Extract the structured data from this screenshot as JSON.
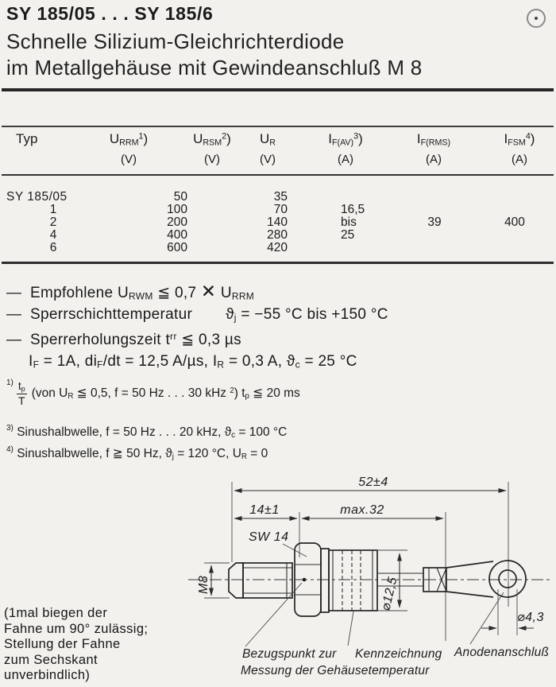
{
  "colors": {
    "paper": "#f2f1ed",
    "ink": "#1b1b1b",
    "rule": "#262626"
  },
  "header": {
    "title": "SY 185/05 . . . SY 185/6",
    "subtitle_line1": "Schnelle Silizium-Gleichrichterdiode",
    "subtitle_line2": "im Metallgehäuse mit Gewindeanschluß M 8",
    "corner_icon": "circled-dot"
  },
  "table": {
    "headers": {
      "typ": "Typ",
      "urrm": [
        {
          "t": "U"
        },
        {
          "t": "RRM",
          "s": "sub"
        },
        {
          "t": "1",
          "s": "sup"
        },
        {
          "t": ")"
        }
      ],
      "ursm": [
        {
          "t": "U"
        },
        {
          "t": "RSM",
          "s": "sub"
        },
        {
          "t": "2",
          "s": "sup"
        },
        {
          "t": ")"
        }
      ],
      "ur": [
        {
          "t": "U"
        },
        {
          "t": "R",
          "s": "sub"
        }
      ],
      "ifav": [
        {
          "t": "I"
        },
        {
          "t": "F(AV)",
          "s": "sub"
        },
        {
          "t": "3",
          "s": "sup"
        },
        {
          "t": ")"
        }
      ],
      "ifrms": [
        {
          "t": "I"
        },
        {
          "t": "F(RMS)",
          "s": "sub"
        }
      ],
      "ifsm": [
        {
          "t": "I"
        },
        {
          "t": "FSM",
          "s": "sub"
        },
        {
          "t": "4",
          "s": "sup"
        },
        {
          "t": ")"
        }
      ]
    },
    "units": {
      "urrm": "(V)",
      "ursm": "(V)",
      "ur": "(V)",
      "ifav": "(A)",
      "ifrms": "(A)",
      "ifsm": "(A)"
    },
    "rows": [
      {
        "typ": "SY 185/05",
        "urrm": "50",
        "ur": "35"
      },
      {
        "typ": "1",
        "urrm": "100",
        "ur": "70",
        "ifav": "16,5"
      },
      {
        "typ": "2",
        "urrm": "200",
        "ur": "140",
        "ifav": "bis",
        "ifrms": "39",
        "ifsm": "400"
      },
      {
        "typ": "4",
        "urrm": "400",
        "ur": "280",
        "ifav": "25"
      },
      {
        "typ": "6",
        "urrm": "600",
        "ur": "420"
      }
    ]
  },
  "notes": [
    {
      "dash": "—",
      "segs": [
        {
          "t": "Empfohlene U"
        },
        {
          "t": "RWM",
          "s": "sub"
        },
        {
          "t": " ≦ 0,7 "
        },
        {
          "t": "✕",
          "s": "x"
        },
        {
          "t": " U"
        },
        {
          "t": "RRM",
          "s": "sub"
        }
      ]
    },
    {
      "dash": "—",
      "segs": [
        {
          "t": "Sperrschichttemperatur"
        },
        {
          "t": "ϑ",
          "s": "ml"
        },
        {
          "t": "j",
          "s": "sub"
        },
        {
          "t": " = −55 °C bis +150 °C"
        }
      ]
    },
    {
      "dash": "—",
      "segs": [
        {
          "t": "Sperrerholungszeit t"
        },
        {
          "t": "rr",
          "s": "sup"
        },
        {
          "t": " ≦ 0,3 µs"
        }
      ]
    },
    {
      "segs": [
        {
          "t": "I"
        },
        {
          "t": "F",
          "s": "sub"
        },
        {
          "t": " = 1A, di"
        },
        {
          "t": "F",
          "s": "sub"
        },
        {
          "t": "/dt = 12,5 A/µs, I"
        },
        {
          "t": "R",
          "s": "sub"
        },
        {
          "t": " = 0,3 A, ϑ"
        },
        {
          "t": "c",
          "s": "sub"
        },
        {
          "t": " = 25 °C"
        }
      ]
    }
  ],
  "footnotes": {
    "fn1": {
      "sup": "1)",
      "frac": {
        "num": "t",
        "num_sub": "p",
        "den": "T"
      },
      "segs": [
        {
          "t": "(von U"
        },
        {
          "t": "R",
          "s": "sub"
        },
        {
          "t": " ≦ 0,5, f = 50 Hz . . . 30 kHz "
        },
        {
          "t": "2",
          "s": "sup"
        },
        {
          "t": ") t"
        },
        {
          "t": "p",
          "s": "sub"
        },
        {
          "t": " ≦ 20 ms"
        }
      ]
    },
    "fn3": {
      "sup": "3)",
      "segs": [
        {
          "t": "Sinushalbwelle, f = 50 Hz . . . 20 kHz, ϑ"
        },
        {
          "t": "c",
          "s": "sub"
        },
        {
          "t": " = 100 °C"
        }
      ]
    },
    "fn4": {
      "sup": "4)",
      "segs": [
        {
          "t": "Sinushalbwelle, f ≧ 50 Hz, ϑ"
        },
        {
          "t": "j",
          "s": "sub"
        },
        {
          "t": " = 120 °C, U"
        },
        {
          "t": "R",
          "s": "sub"
        },
        {
          "t": " = 0"
        }
      ]
    }
  },
  "drawing": {
    "dims": {
      "overall": "52±4",
      "stud_len": "14±1",
      "body_len": "max.32",
      "wrench": "SW 14",
      "thread": "M8",
      "body_dia": "⌀12,5",
      "hole_dia": "⌀4,3"
    },
    "labels": {
      "ref_line1": "Bezugspunkt zur",
      "ref_line2": "Messung der Gehäusetemperatur",
      "marking": "Kennzeichnung",
      "anode": "Anodenanschluß"
    },
    "side_note": [
      "(1mal biegen der",
      "Fahne um 90° zulässig;",
      "Stellung der Fahne",
      "zum Sechskant",
      "unverbindlich)"
    ]
  }
}
